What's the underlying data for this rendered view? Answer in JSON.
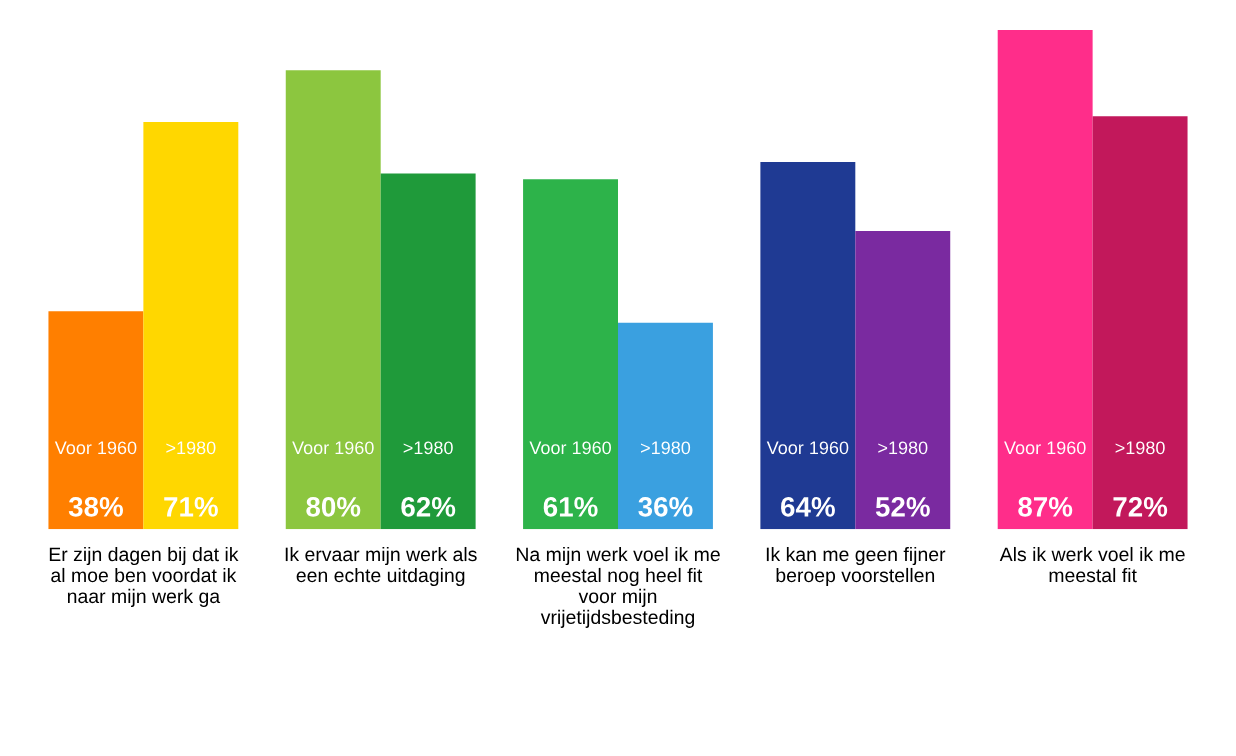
{
  "chart_data": {
    "type": "bar",
    "categories": [
      "Er zijn dagen bij dat ik al moe ben voordat ik naar mijn werk ga",
      "Ik ervaar mijn werk als een echte uitdaging",
      "Na mijn werk voel ik me meestal nog heel fit voor mijn vrijetijdsbesteding",
      "Ik kan me geen fijner beroep voorstellen",
      "Als ik werk voel ik me meestal fit"
    ],
    "series": [
      {
        "name": "Voor 1960",
        "colors": [
          "#ff7f00",
          "#8cc63f",
          "#2db34a",
          "#1f3a93",
          "#ff2d8a"
        ],
        "values": [
          38,
          80,
          61,
          64,
          87
        ],
        "value_labels": [
          "38%",
          "80%",
          "61%",
          "64%",
          "87%"
        ]
      },
      {
        "name": ">1980",
        "colors": [
          "#ffd700",
          "#1f9a3a",
          "#3aa0e0",
          "#7a2aa0",
          "#c2185b"
        ],
        "values": [
          71,
          62,
          36,
          52,
          72
        ],
        "value_labels": [
          "71%",
          "62%",
          "36%",
          "52%",
          "72%"
        ]
      }
    ],
    "legend": false
  }
}
